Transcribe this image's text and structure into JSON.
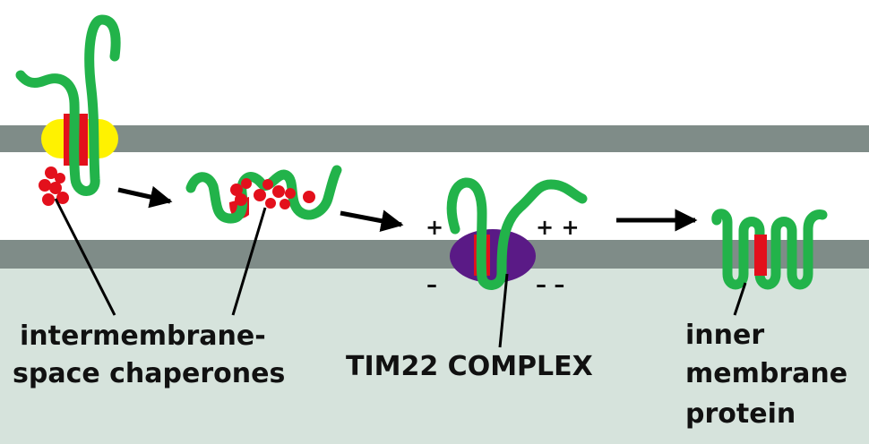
{
  "labels": {
    "chaperones_line1": "intermembrane-",
    "chaperones_line2": "space chaperones",
    "tim22": "TIM22 COMPLEX",
    "inner_line1": "inner",
    "inner_line2": "membrane",
    "inner_line3": "protein"
  },
  "charges": {
    "plus_left": "+",
    "plus_right": "+ +",
    "minus_left": "–",
    "minus_right": "– –"
  },
  "colors": {
    "membrane": "#7f8c88",
    "matrix": "#d6e3dc",
    "protein": "#22b34a",
    "signal_segment": "#e3101c",
    "chaperone": "#e3101c",
    "outer_channel": "#fff200",
    "tim22": "#5a1a86",
    "arrow": "#000000"
  }
}
